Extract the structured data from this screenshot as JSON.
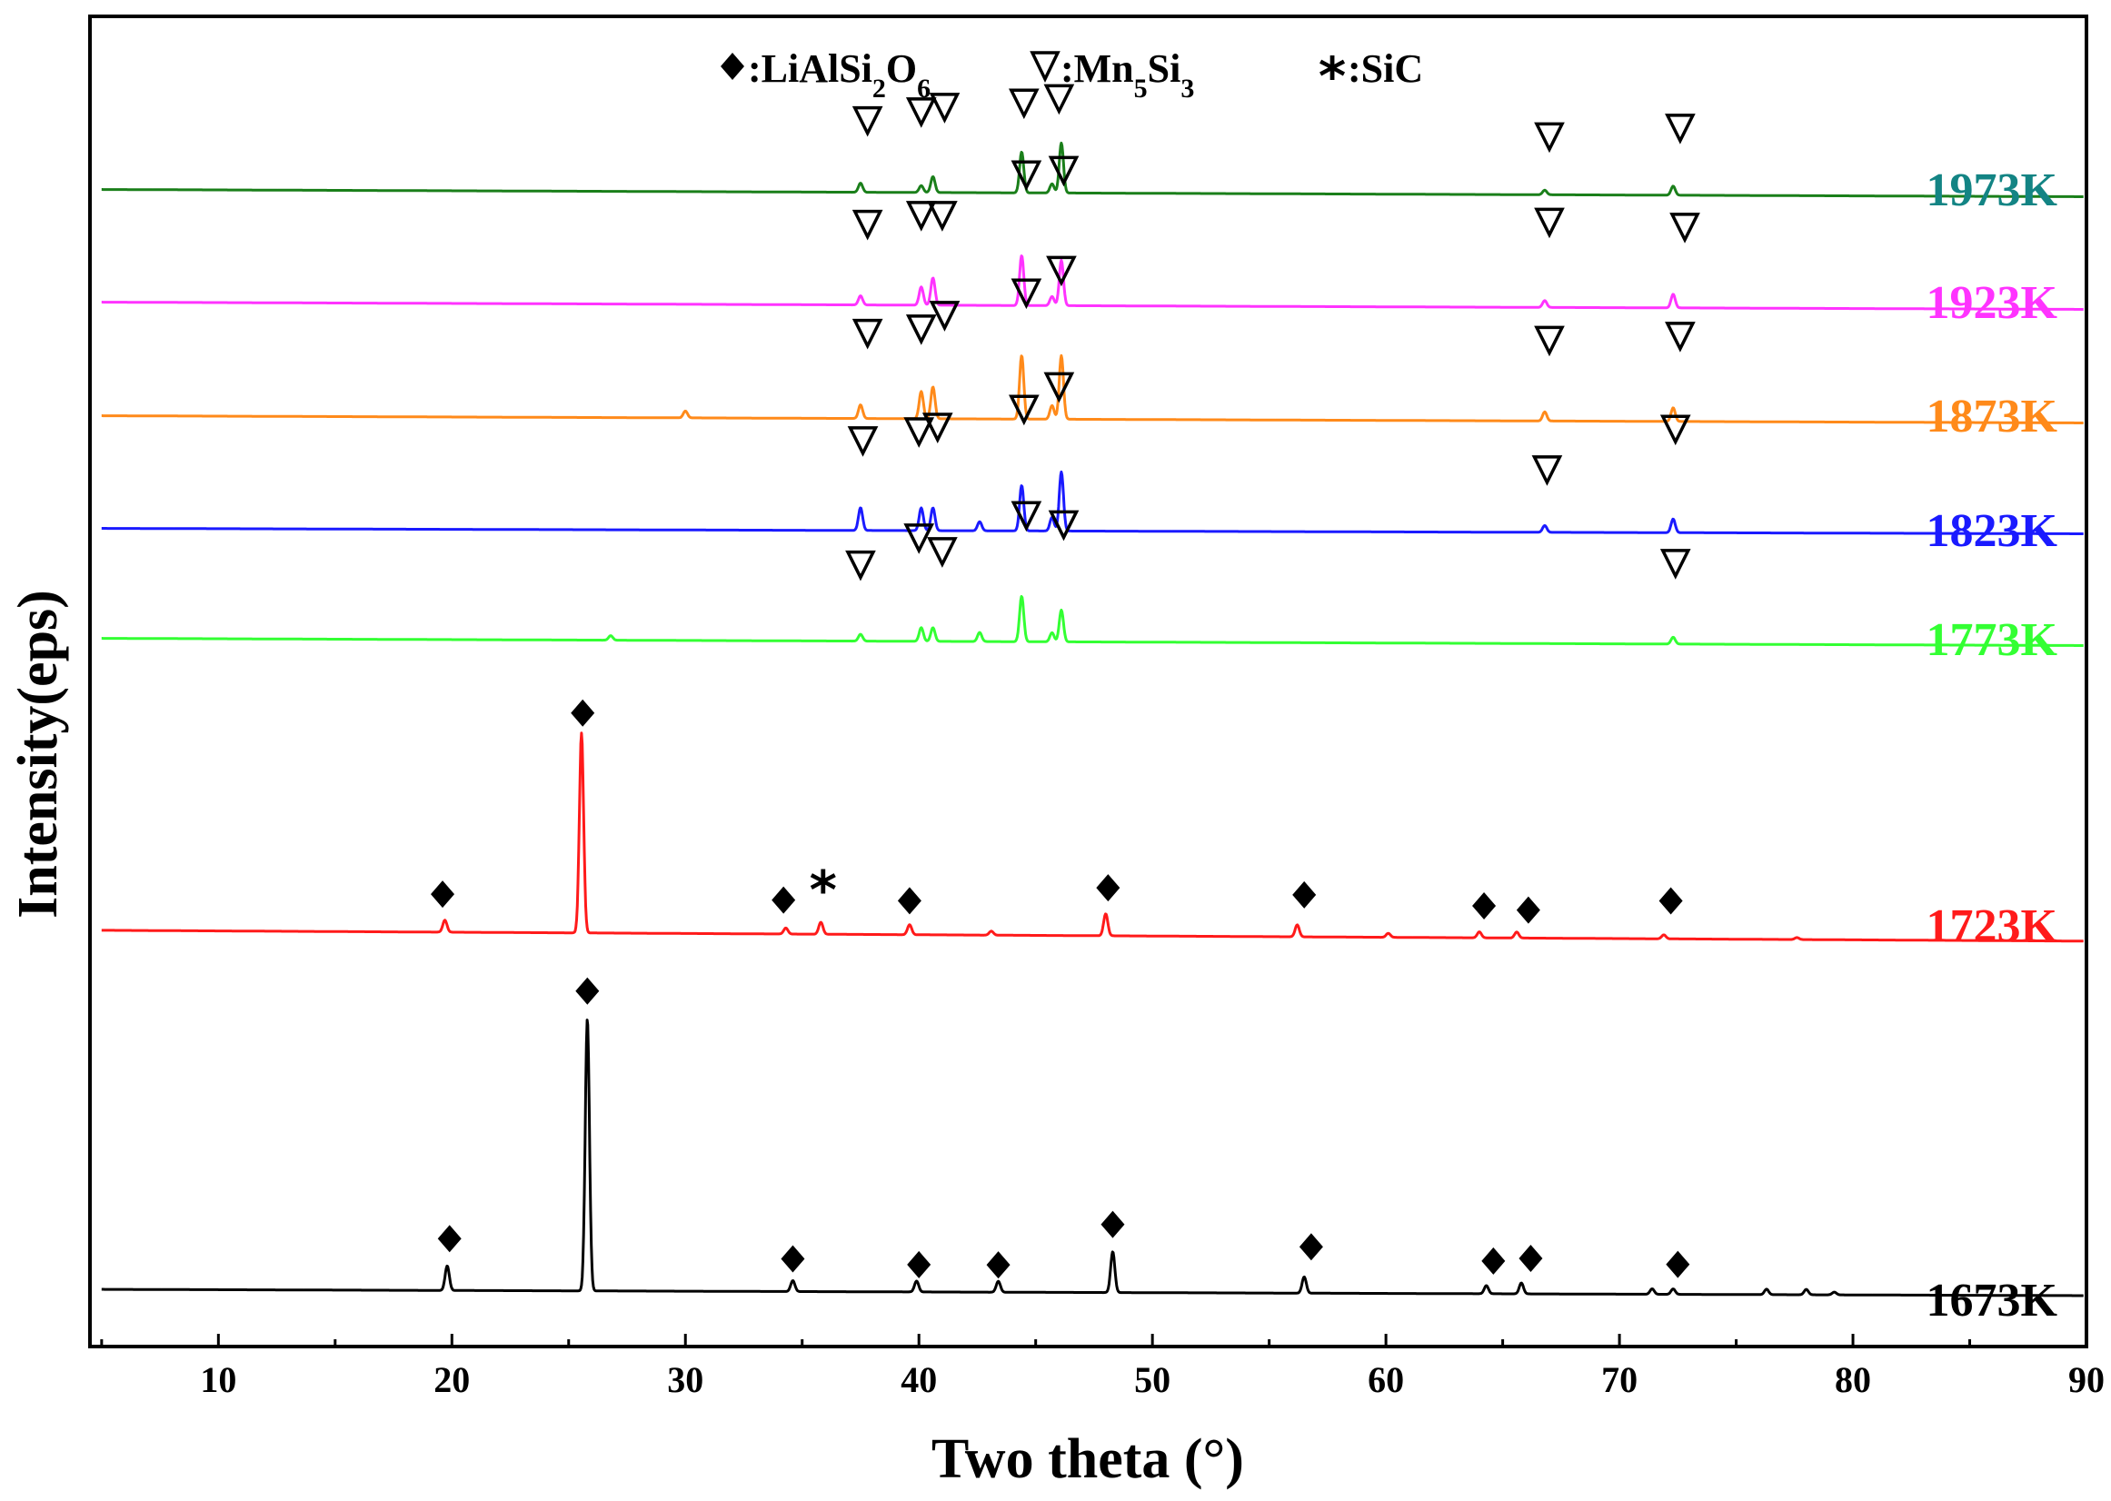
{
  "chart_data": {
    "type": "line",
    "title": "",
    "xlabel": "Two theta (°)",
    "ylabel": "Intensity(eps)",
    "xlim": [
      4.5,
      90
    ],
    "xticks": [
      10,
      20,
      30,
      40,
      50,
      60,
      70,
      80,
      90
    ],
    "xtick_labels": [
      "10",
      "20",
      "30",
      "40",
      "50",
      "60",
      "70",
      "80",
      "90"
    ],
    "y_ticks_shown": false,
    "legend": {
      "placement": "top-center",
      "entries": [
        {
          "symbol": "◆",
          "marker": "diamond",
          "text": ":LiAlSi",
          "sub1": "2",
          "text2": "O",
          "sub2": "6"
        },
        {
          "symbol": "∇",
          "marker": "triangle",
          "text": ":Mn",
          "sub1": "5",
          "text2": "Si",
          "sub2": "3"
        },
        {
          "symbol": "*",
          "marker": "star",
          "text": ":SiC",
          "sub1": "",
          "text2": "",
          "sub2": ""
        }
      ]
    },
    "series": [
      {
        "name": "1973K",
        "color": "#1a7f1a",
        "label_color": "#138484",
        "baseline": 0.055,
        "peaks": [
          [
            37.5,
            0.02
          ],
          [
            40.1,
            0.015
          ],
          [
            40.6,
            0.035
          ],
          [
            44.4,
            0.09
          ],
          [
            45.7,
            0.02
          ],
          [
            46.1,
            0.11
          ],
          [
            66.8,
            0.01
          ],
          [
            72.3,
            0.02
          ]
        ],
        "markers": [
          {
            "type": "triangle",
            "x": 37.8,
            "h": 0.16
          },
          {
            "type": "triangle",
            "x": 40.1,
            "h": 0.18
          },
          {
            "type": "triangle",
            "x": 41.1,
            "h": 0.19
          },
          {
            "type": "triangle",
            "x": 44.5,
            "h": 0.2
          },
          {
            "type": "triangle",
            "x": 46.0,
            "h": 0.21
          },
          {
            "type": "triangle",
            "x": 67.0,
            "h": 0.13
          },
          {
            "type": "triangle",
            "x": 72.6,
            "h": 0.15
          }
        ]
      },
      {
        "name": "1923K",
        "color": "#ff33ff",
        "label_color": "#ff33ff",
        "baseline": 0.055,
        "peaks": [
          [
            37.5,
            0.02
          ],
          [
            40.1,
            0.04
          ],
          [
            40.6,
            0.06
          ],
          [
            44.4,
            0.11
          ],
          [
            45.7,
            0.02
          ],
          [
            46.1,
            0.1
          ],
          [
            66.8,
            0.015
          ],
          [
            72.3,
            0.03
          ]
        ],
        "markers": [
          {
            "type": "triangle",
            "x": 37.8,
            "h": 0.18
          },
          {
            "type": "triangle",
            "x": 40.1,
            "h": 0.2
          },
          {
            "type": "triangle",
            "x": 41.0,
            "h": 0.2
          },
          {
            "type": "triangle",
            "x": 44.6,
            "h": 0.29
          },
          {
            "type": "triangle",
            "x": 46.2,
            "h": 0.3
          },
          {
            "type": "triangle",
            "x": 67.0,
            "h": 0.19
          },
          {
            "type": "triangle",
            "x": 72.8,
            "h": 0.18
          }
        ]
      },
      {
        "name": "1873K",
        "color": "#ff8a1a",
        "label_color": "#ff8a1a",
        "baseline": 0.055,
        "peaks": [
          [
            30.0,
            0.015
          ],
          [
            37.5,
            0.03
          ],
          [
            40.1,
            0.06
          ],
          [
            40.6,
            0.07
          ],
          [
            44.4,
            0.14
          ],
          [
            45.7,
            0.03
          ],
          [
            46.1,
            0.14
          ],
          [
            66.8,
            0.02
          ],
          [
            72.3,
            0.03
          ]
        ],
        "markers": [
          {
            "type": "triangle",
            "x": 37.8,
            "h": 0.19
          },
          {
            "type": "triangle",
            "x": 40.1,
            "h": 0.2
          },
          {
            "type": "triangle",
            "x": 41.1,
            "h": 0.23
          },
          {
            "type": "triangle",
            "x": 44.6,
            "h": 0.28
          },
          {
            "type": "triangle",
            "x": 46.1,
            "h": 0.33
          },
          {
            "type": "triangle",
            "x": 67.0,
            "h": 0.18
          },
          {
            "type": "triangle",
            "x": 72.6,
            "h": 0.19
          }
        ]
      },
      {
        "name": "1823K",
        "color": "#1a1aff",
        "label_color": "#1a1aff",
        "baseline": 0.055,
        "peaks": [
          [
            37.5,
            0.05
          ],
          [
            40.1,
            0.05
          ],
          [
            40.6,
            0.05
          ],
          [
            42.6,
            0.02
          ],
          [
            44.4,
            0.1
          ],
          [
            45.7,
            0.03
          ],
          [
            46.1,
            0.13
          ],
          [
            66.8,
            0.015
          ],
          [
            72.3,
            0.03
          ]
        ],
        "markers": [
          {
            "type": "triangle",
            "x": 37.6,
            "h": 0.2
          },
          {
            "type": "triangle",
            "x": 40.0,
            "h": 0.22
          },
          {
            "type": "triangle",
            "x": 40.8,
            "h": 0.23
          },
          {
            "type": "triangle",
            "x": 44.5,
            "h": 0.27
          },
          {
            "type": "triangle",
            "x": 46.0,
            "h": 0.32
          },
          {
            "type": "triangle",
            "x": 66.9,
            "h": 0.14
          },
          {
            "type": "triangle",
            "x": 72.4,
            "h": 0.23
          }
        ]
      },
      {
        "name": "1773K",
        "color": "#33ff33",
        "label_color": "#33ff33",
        "baseline": 0.055,
        "peaks": [
          [
            26.8,
            0.01
          ],
          [
            37.5,
            0.015
          ],
          [
            40.1,
            0.03
          ],
          [
            40.6,
            0.03
          ],
          [
            42.6,
            0.02
          ],
          [
            44.4,
            0.1
          ],
          [
            45.7,
            0.02
          ],
          [
            46.1,
            0.07
          ],
          [
            72.3,
            0.015
          ]
        ],
        "markers": [
          {
            "type": "triangle",
            "x": 37.5,
            "h": 0.17
          },
          {
            "type": "triangle",
            "x": 40.0,
            "h": 0.23
          },
          {
            "type": "triangle",
            "x": 41.0,
            "h": 0.2
          },
          {
            "type": "triangle",
            "x": 44.6,
            "h": 0.28
          },
          {
            "type": "triangle",
            "x": 46.2,
            "h": 0.26
          },
          {
            "type": "triangle",
            "x": 72.4,
            "h": 0.18
          }
        ]
      },
      {
        "name": "1723K",
        "color": "#ff1a1a",
        "label_color": "#ff1a1a",
        "baseline": 0.11,
        "peaks": [
          [
            19.7,
            0.06
          ],
          [
            25.55,
            1.0
          ],
          [
            34.3,
            0.03
          ],
          [
            35.8,
            0.06
          ],
          [
            39.6,
            0.05
          ],
          [
            43.1,
            0.02
          ],
          [
            48.0,
            0.11
          ],
          [
            56.2,
            0.06
          ],
          [
            60.1,
            0.02
          ],
          [
            64.0,
            0.03
          ],
          [
            65.6,
            0.03
          ],
          [
            71.9,
            0.02
          ],
          [
            77.6,
            0.01
          ]
        ],
        "markers": [
          {
            "type": "diamond",
            "x": 19.6,
            "h": 0.19
          },
          {
            "type": "diamond",
            "x": 25.6,
            "h": 1.1
          },
          {
            "type": "diamond",
            "x": 34.2,
            "h": 0.17
          },
          {
            "type": "star",
            "x": 35.9,
            "h": 0.24
          },
          {
            "type": "diamond",
            "x": 39.6,
            "h": 0.17
          },
          {
            "type": "diamond",
            "x": 48.1,
            "h": 0.24
          },
          {
            "type": "diamond",
            "x": 56.5,
            "h": 0.21
          },
          {
            "type": "diamond",
            "x": 64.2,
            "h": 0.16
          },
          {
            "type": "diamond",
            "x": 66.1,
            "h": 0.14
          },
          {
            "type": "diamond",
            "x": 72.2,
            "h": 0.19
          }
        ]
      },
      {
        "name": "1673K",
        "color": "#000000",
        "label_color": "#000000",
        "baseline": 0.12,
        "peaks": [
          [
            19.8,
            0.09
          ],
          [
            25.8,
            1.0
          ],
          [
            34.6,
            0.04
          ],
          [
            39.9,
            0.04
          ],
          [
            43.4,
            0.04
          ],
          [
            48.3,
            0.15
          ],
          [
            56.5,
            0.06
          ],
          [
            64.3,
            0.03
          ],
          [
            65.8,
            0.04
          ],
          [
            71.4,
            0.02
          ],
          [
            72.3,
            0.02
          ],
          [
            76.3,
            0.02
          ],
          [
            78.0,
            0.02
          ],
          [
            79.2,
            0.01
          ]
        ],
        "markers": [
          {
            "type": "diamond",
            "x": 19.9,
            "h": 0.19
          },
          {
            "type": "diamond",
            "x": 25.8,
            "h": 1.1
          },
          {
            "type": "diamond",
            "x": 34.6,
            "h": 0.12
          },
          {
            "type": "diamond",
            "x": 40.0,
            "h": 0.1
          },
          {
            "type": "diamond",
            "x": 43.4,
            "h": 0.1
          },
          {
            "type": "diamond",
            "x": 48.3,
            "h": 0.25
          },
          {
            "type": "diamond",
            "x": 56.8,
            "h": 0.17
          },
          {
            "type": "diamond",
            "x": 64.6,
            "h": 0.12
          },
          {
            "type": "diamond",
            "x": 66.2,
            "h": 0.13
          },
          {
            "type": "diamond",
            "x": 72.5,
            "h": 0.11
          }
        ]
      }
    ]
  }
}
